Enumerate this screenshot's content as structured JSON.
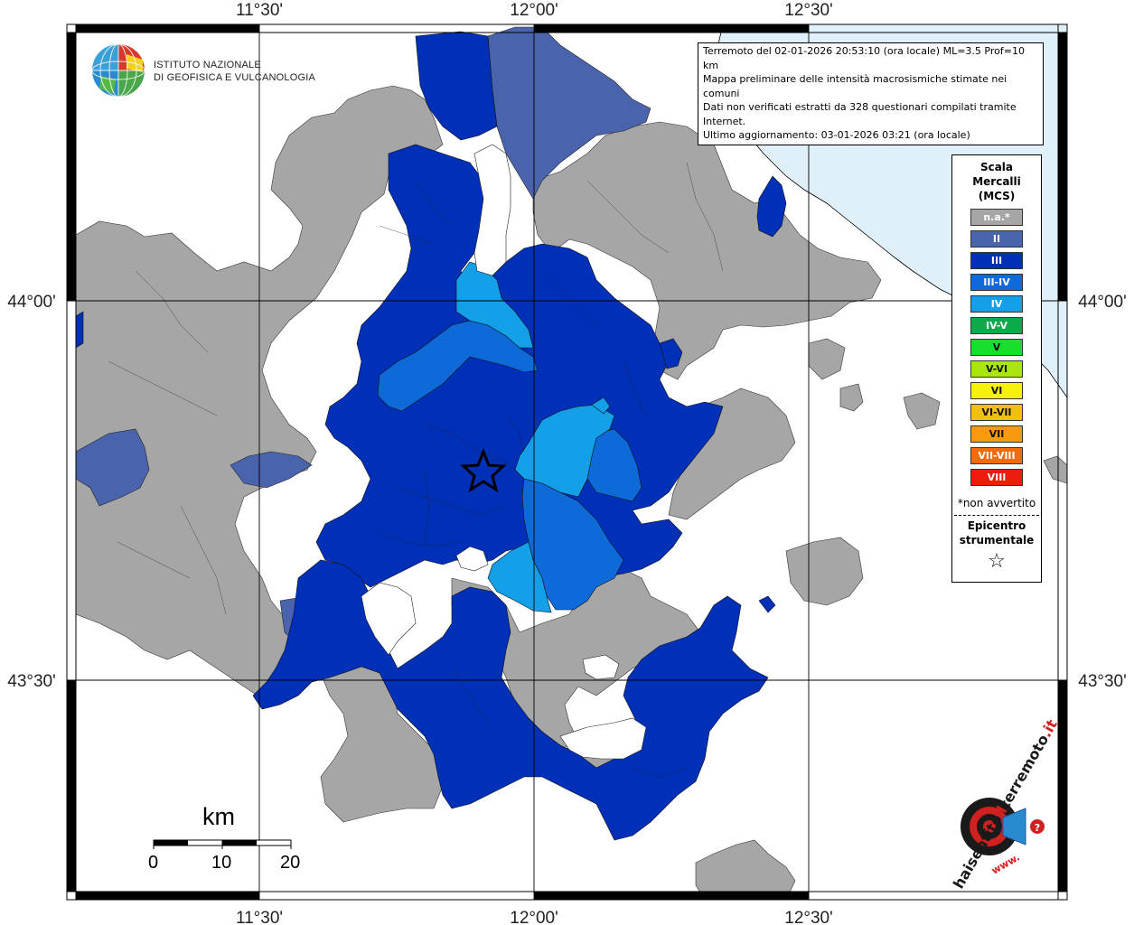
{
  "coords": {
    "top": [
      "11°30'",
      "12°00'",
      "12°30'"
    ],
    "bottom": [
      "11°30'",
      "12°00'",
      "12°30'"
    ],
    "left": [
      "44°00'",
      "43°30'"
    ],
    "right": [
      "44°00'",
      "43°30'"
    ]
  },
  "logo": {
    "line1": "ISTITUTO NAZIONALE",
    "line2": "DI GEOFISICA E VULCANOLOGIA"
  },
  "info": {
    "line1": "Terremoto del 02-01-2026 20:53:10 (ora locale) ML=3.5 Prof=10 km",
    "line2": "Mappa preliminare delle intensità macrosismiche stimate nei comuni",
    "line3": "Dati non verificati estratti da 328 questionari compilati tramite Internet.",
    "line4": "Ultimo aggiornamento: 03-01-2026 03:21 (ora locale)"
  },
  "legend": {
    "title_line1": "Scala",
    "title_line2": "Mercalli",
    "title_line3": "(MCS)",
    "items": [
      {
        "label": "n.a.*",
        "color": "#a6a6a6"
      },
      {
        "label": "II",
        "color": "#4a63ad"
      },
      {
        "label": "III",
        "color": "#0030b8"
      },
      {
        "label": "III-IV",
        "color": "#0e6ad8"
      },
      {
        "label": "IV",
        "color": "#14a0e8"
      },
      {
        "label": "IV-V",
        "color": "#0caa4a"
      },
      {
        "label": "V",
        "color": "#18e02a"
      },
      {
        "label": "V-VI",
        "color": "#a8e60e"
      },
      {
        "label": "VI",
        "color": "#f6f20c"
      },
      {
        "label": "VI-VII",
        "color": "#f0c00c"
      },
      {
        "label": "VII",
        "color": "#f59a0c"
      },
      {
        "label": "VII-VIII",
        "color": "#f26c0c"
      },
      {
        "label": "VIII",
        "color": "#ee1c0c"
      }
    ],
    "note": "*non avvertito",
    "epicenter_line1": "Epicentro",
    "epicenter_line2": "strumentale",
    "star": "☆"
  },
  "scale_bar": {
    "unit": "km",
    "ticks": [
      "0",
      "10",
      "20"
    ]
  },
  "hsit": {
    "brand": "haisentitoilterremoto.it",
    "www": "www.",
    "prefix": "haisentito",
    "il": "il",
    "terremoto": "terremoto",
    "it": ".it"
  },
  "colors": {
    "sea": "#dff0fb",
    "not_felt": "#a6a6a6",
    "II": "#4a63ad",
    "III": "#0030b8",
    "III_IV": "#0e6ad8",
    "IV": "#14a0e8"
  }
}
